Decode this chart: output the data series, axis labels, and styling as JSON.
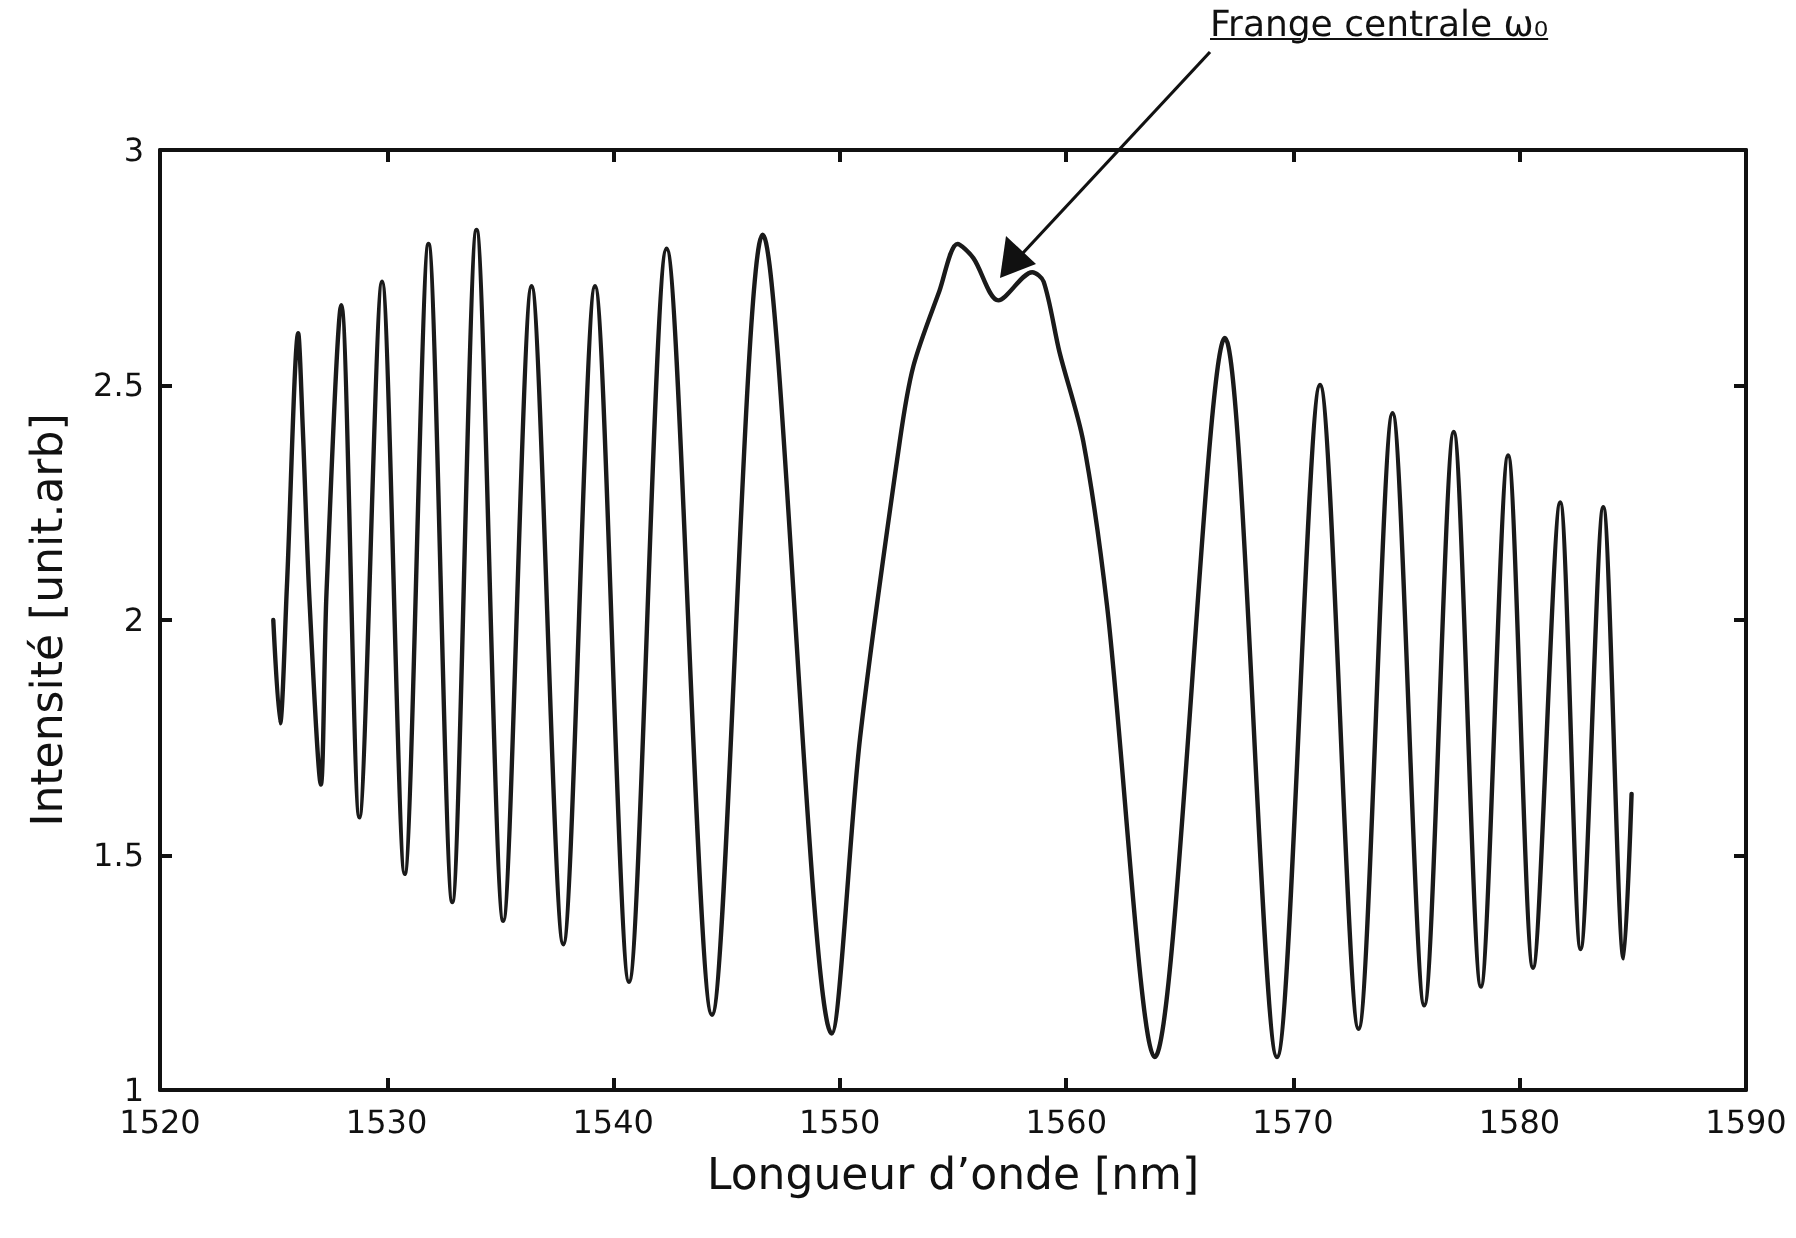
{
  "chart_data": {
    "type": "line",
    "xlabel": "Longueur d’onde [nm]",
    "ylabel": "Intensité [unit.arb]",
    "xlim": [
      1520,
      1590
    ],
    "xticks": [
      1520,
      1530,
      1540,
      1550,
      1560,
      1570,
      1580,
      1590
    ],
    "ylim": [
      1,
      3
    ],
    "yticks": [
      1,
      1.5,
      2,
      2.5,
      3
    ],
    "grid": false,
    "marker": "none",
    "line_style": "solid",
    "series": [
      {
        "color": "#1a1a1a",
        "x": [
          1525.0,
          1525.3,
          1525.6,
          1526.1,
          1526.3,
          1526.6,
          1527.1,
          1527.35,
          1528.0,
          1528.8,
          1529.8,
          1530.8,
          1531.85,
          1532.9,
          1533.97,
          1535.15,
          1536.4,
          1537.8,
          1539.2,
          1540.7,
          1542.36,
          1544.36,
          1546.6,
          1549.65,
          1550.9,
          1552.65,
          1553.25,
          1554.4,
          1555.2,
          1555.9,
          1557.0,
          1558.5,
          1559.0,
          1559.7,
          1560.75,
          1561.8,
          1563.9,
          1567.0,
          1569.3,
          1571.2,
          1572.9,
          1574.4,
          1575.8,
          1577.1,
          1578.3,
          1579.5,
          1580.6,
          1581.8,
          1582.7,
          1583.7,
          1584.6,
          1584.95
        ],
        "values": [
          2.0,
          1.78,
          2.07,
          2.61,
          2.41,
          2.04,
          1.65,
          2.06,
          2.67,
          1.58,
          2.72,
          1.46,
          2.8,
          1.4,
          2.83,
          1.36,
          2.71,
          1.31,
          2.71,
          1.23,
          2.79,
          1.16,
          2.82,
          1.12,
          1.75,
          2.38,
          2.54,
          2.7,
          2.8,
          2.77,
          2.68,
          2.74,
          2.72,
          2.57,
          2.38,
          2.03,
          1.07,
          2.6,
          1.07,
          2.5,
          1.13,
          2.44,
          1.18,
          2.4,
          1.22,
          2.35,
          1.26,
          2.25,
          1.3,
          2.24,
          1.28,
          1.63
        ]
      }
    ],
    "annotations": [
      "Frange centrale ω₀"
    ]
  }
}
